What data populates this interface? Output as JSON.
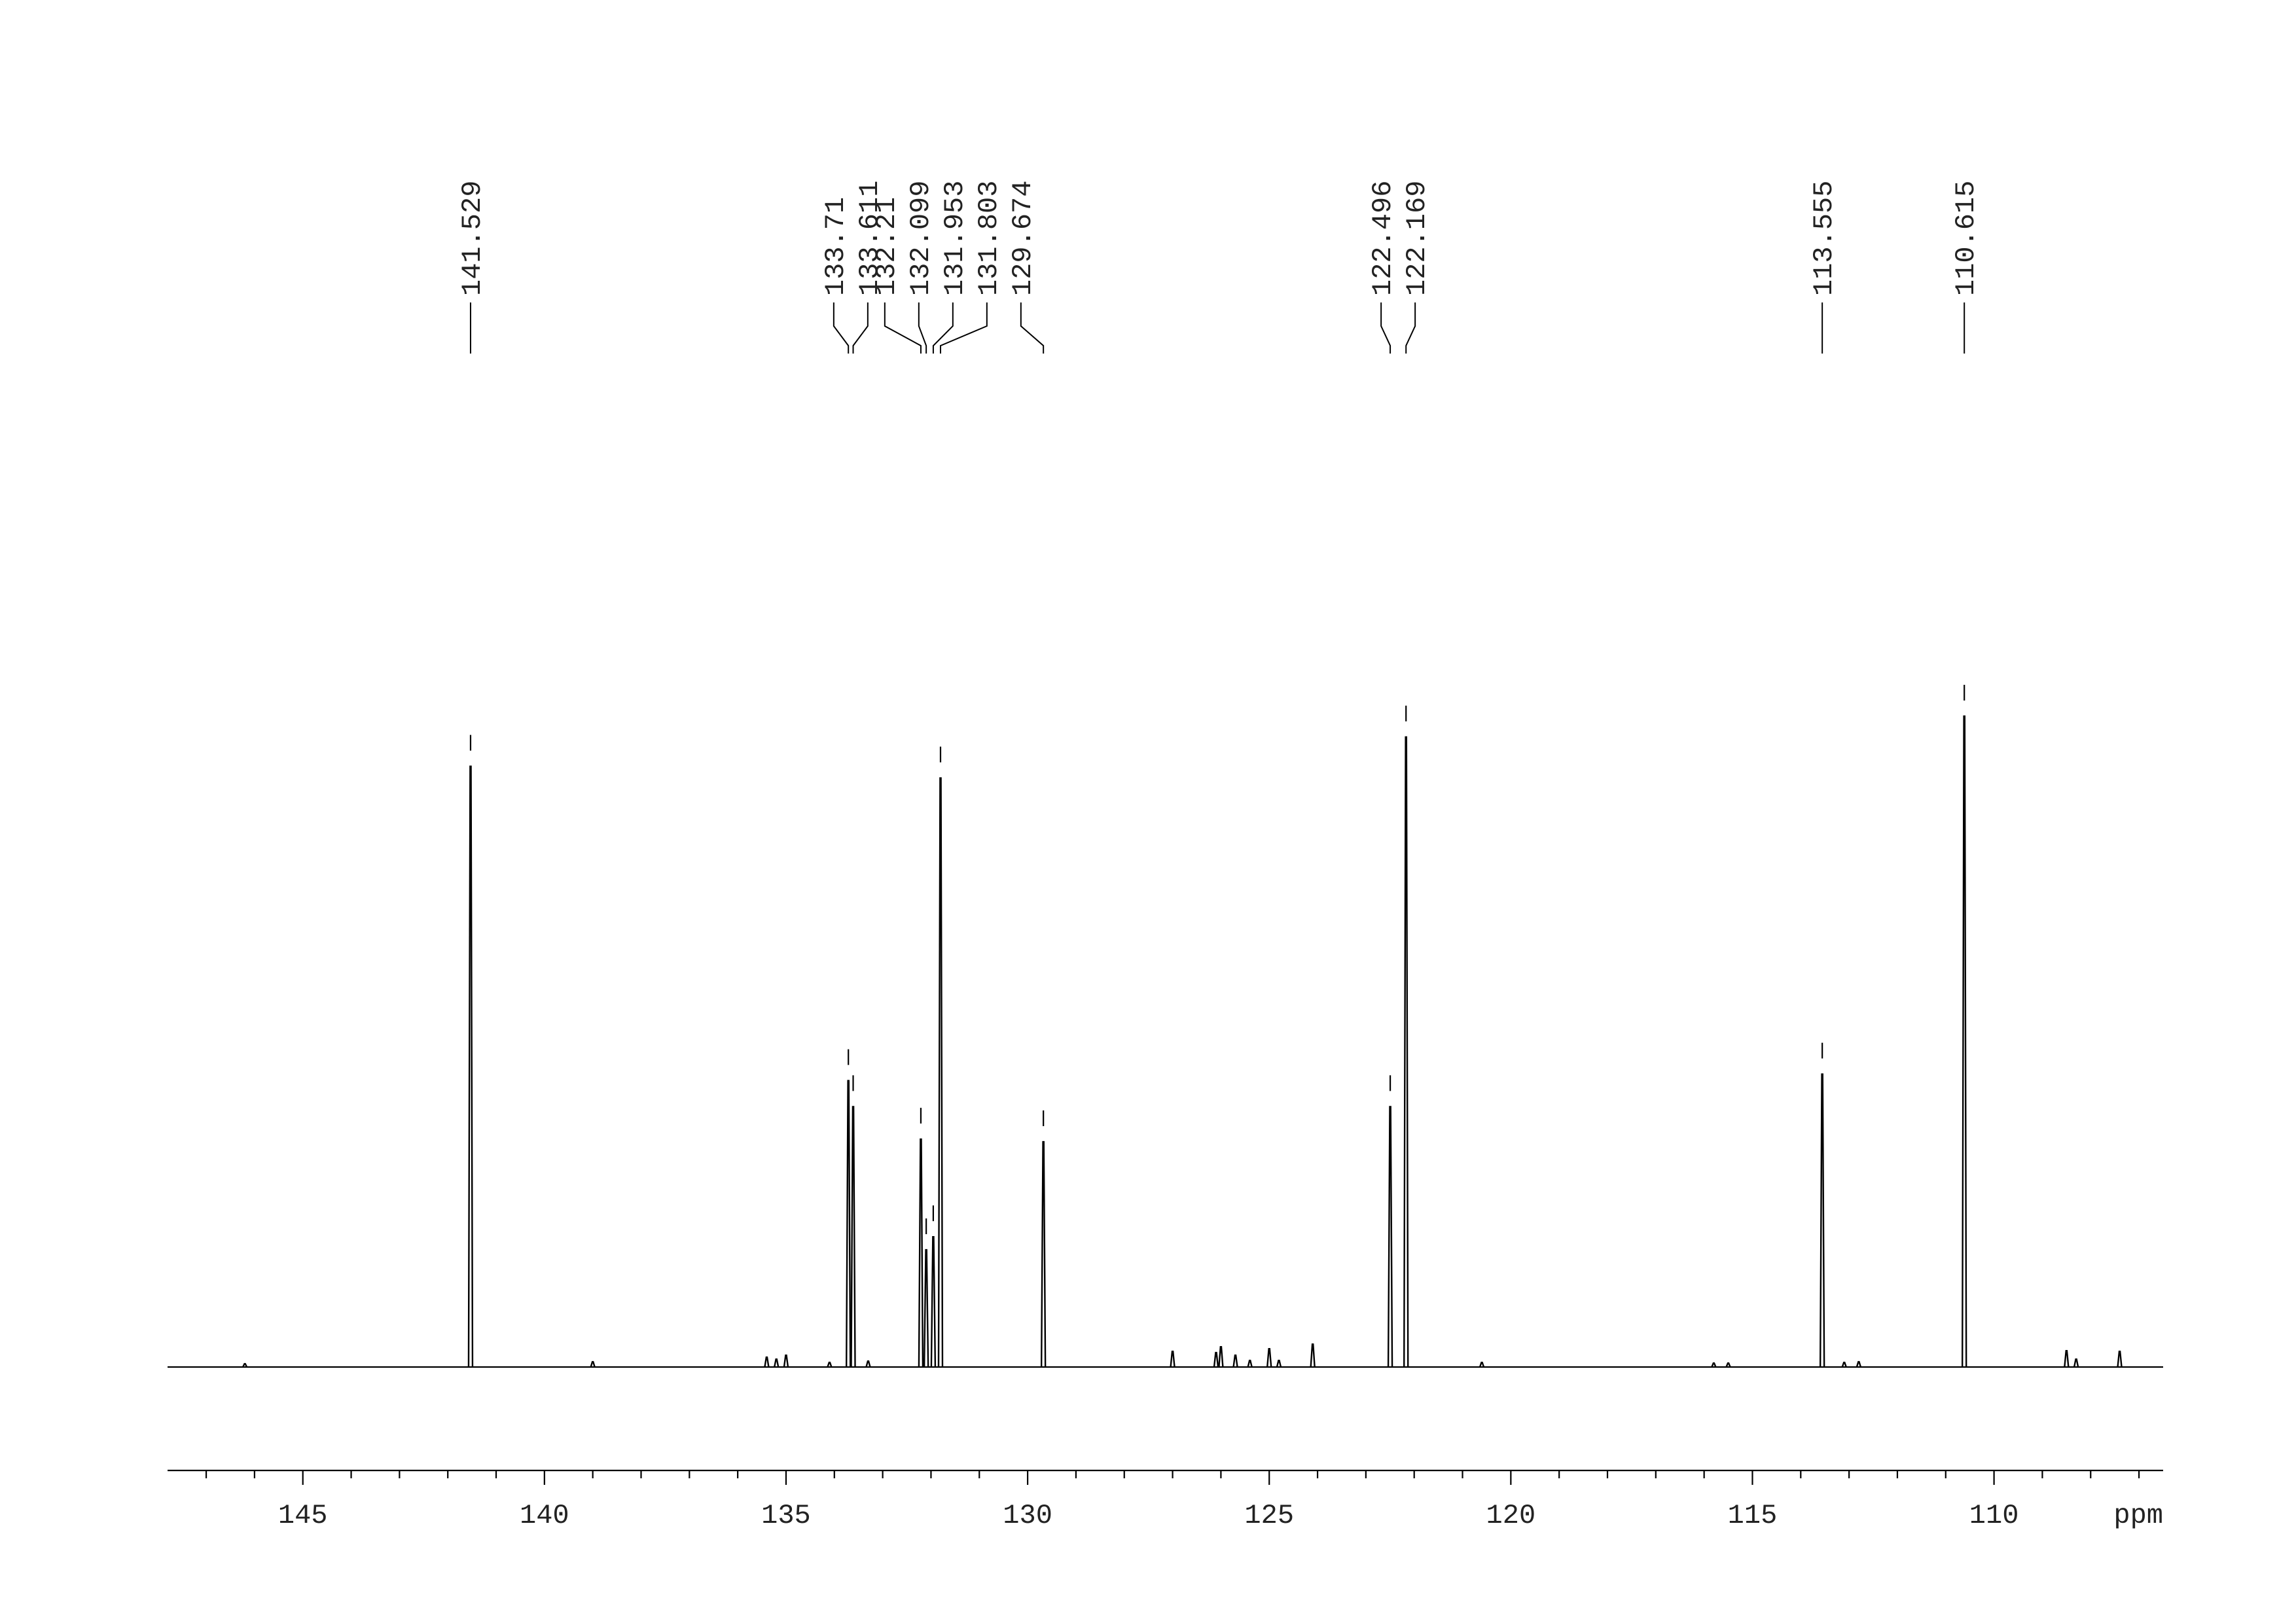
{
  "chart_data": {
    "type": "nmr",
    "x_label": "ppm",
    "xlim": [
      147.8,
      106.5
    ],
    "xticks": [
      145,
      140,
      135,
      130,
      125,
      120,
      115,
      110
    ],
    "xminorticks": [
      147,
      146,
      144,
      143,
      142,
      141,
      139,
      138,
      137,
      136,
      134,
      133,
      132,
      131,
      129,
      128,
      127,
      126,
      124,
      123,
      122,
      121,
      119,
      118,
      117,
      116,
      114,
      113,
      112,
      111,
      109,
      108,
      107
    ],
    "ylim": [
      0,
      100
    ],
    "color": "#000000",
    "peaks": {
      "x": [
        141.529,
        133.71,
        133.611,
        132.21,
        132.099,
        131.953,
        131.803,
        129.674,
        122.496,
        122.169,
        113.555,
        110.615
      ],
      "values": [
        92.3,
        44,
        40,
        35,
        18,
        20,
        90.5,
        34.6,
        40,
        96.8,
        45,
        100
      ]
    },
    "minor_peaks": {
      "x": [
        146.2,
        139.0,
        135.4,
        135.2,
        135.0,
        134.1,
        133.3,
        127.0,
        126.1,
        126.0,
        125.7,
        125.4,
        125.0,
        124.8,
        124.1,
        120.6,
        115.8,
        115.5,
        113.1,
        112.8,
        108.5,
        108.3,
        107.4
      ],
      "values": [
        0.5,
        0.8,
        1.5,
        1.2,
        1.8,
        0.7,
        0.9,
        2.4,
        2.2,
        3.1,
        1.8,
        1.0,
        2.8,
        1.0,
        3.5,
        0.7,
        0.6,
        0.6,
        0.7,
        0.8,
        2.5,
        1.2,
        2.4
      ]
    }
  }
}
